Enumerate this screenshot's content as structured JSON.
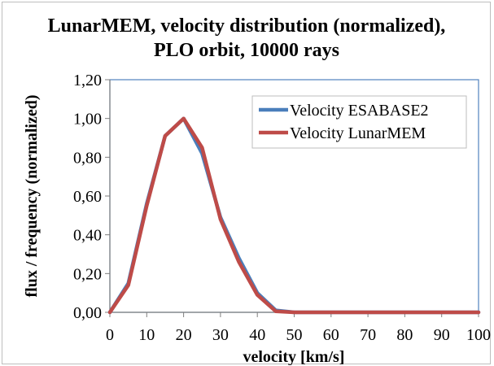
{
  "chart_data": {
    "type": "line",
    "title_line1": "LunarMEM, velocity distribution (normalized),",
    "title_line2": "PLO orbit, 10000 rays",
    "xlabel": "velocity [km/s]",
    "ylabel": "flux / frequency (normalized)",
    "xlim": [
      0,
      100
    ],
    "ylim": [
      0,
      1.2
    ],
    "x_ticks": [
      0,
      10,
      20,
      30,
      40,
      50,
      60,
      70,
      80,
      90,
      100
    ],
    "x_tick_labels": [
      "0",
      "10",
      "20",
      "30",
      "40",
      "50",
      "60",
      "70",
      "80",
      "90",
      "100"
    ],
    "y_ticks": [
      0,
      0.2,
      0.4,
      0.6,
      0.8,
      1.0,
      1.2
    ],
    "y_tick_labels": [
      "0,00",
      "0,20",
      "0,40",
      "0,60",
      "0,80",
      "1,00",
      "1,20"
    ],
    "grid": false,
    "legend_position": "top-right",
    "x": [
      0,
      5,
      10,
      15,
      20,
      25,
      30,
      35,
      40,
      45,
      50,
      55,
      60,
      65,
      70,
      75,
      80,
      85,
      90,
      95,
      100
    ],
    "series": [
      {
        "name": "Velocity ESABASE2",
        "color": "#4a7ebb",
        "values": [
          0.0,
          0.15,
          0.56,
          0.91,
          1.0,
          0.82,
          0.49,
          0.28,
          0.1,
          0.01,
          0.0,
          0.0,
          0.0,
          0.0,
          0.0,
          0.0,
          0.0,
          0.0,
          0.0,
          0.0,
          0.0
        ]
      },
      {
        "name": "Velocity LunarMEM",
        "color": "#be4b48",
        "values": [
          0.0,
          0.14,
          0.55,
          0.91,
          1.0,
          0.85,
          0.48,
          0.26,
          0.09,
          0.005,
          0.0,
          0.0,
          0.0,
          0.0,
          0.0,
          0.0,
          0.0,
          0.0,
          0.0,
          0.0,
          0.0
        ]
      }
    ]
  }
}
